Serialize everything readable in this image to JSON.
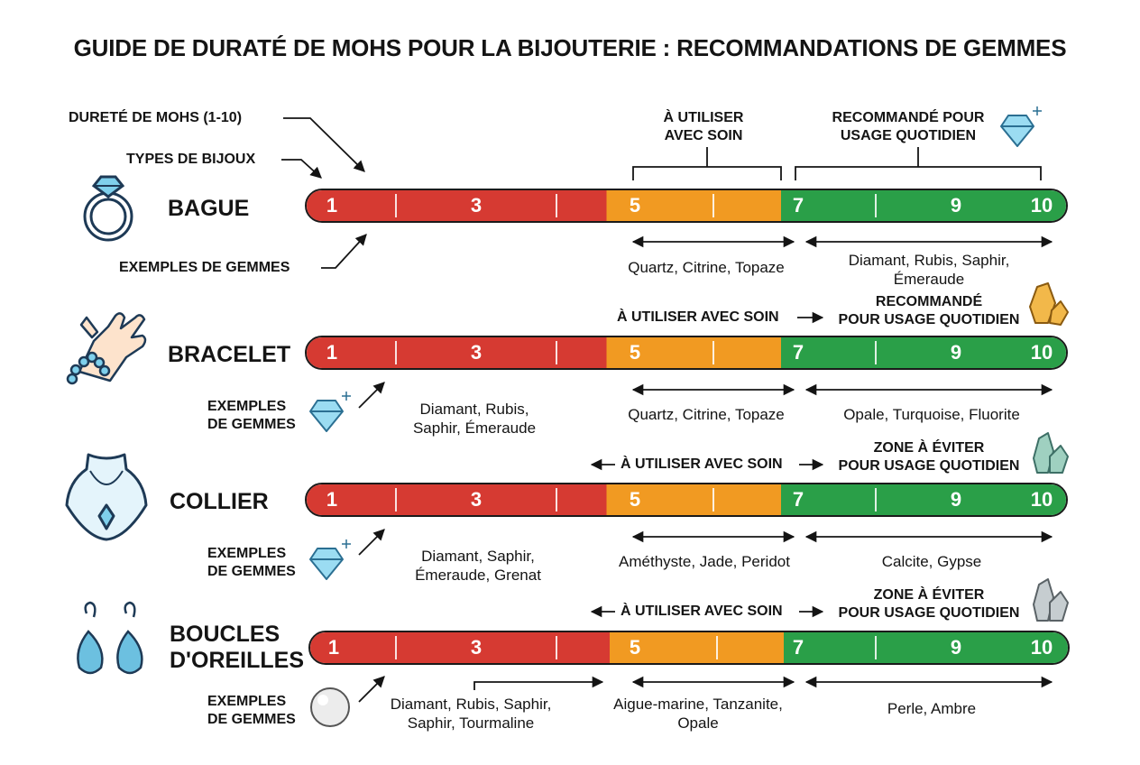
{
  "title": "GUIDE DE DURATÉ DE MOHS POUR LA BIJOUTERIE : RECOMMANDATIONS DE GEMMES",
  "legend": {
    "mohs": "DURETÉ DE MOHS (1-10)",
    "types": "TYPES DE BIJOUX",
    "examples": "EXEMPLES DE GEMMES"
  },
  "scale_numbers": [
    "1",
    "3",
    "5",
    "7",
    "9",
    "10"
  ],
  "colors": {
    "low": "#d63a32",
    "medium": "#f19a22",
    "high": "#2a9f48",
    "gem": "#7fd0ec"
  },
  "rows": [
    {
      "label": "BAGUE",
      "icon": "ring-icon",
      "care_label": "À UTILISER\nAVEC SOIN",
      "zone_label": "RECOMMANDÉ POUR\nUSAGE QUOTIDIEN",
      "gems_low": "",
      "gems_mid": "Quartz, Citrine, Topaze",
      "gems_high": "Diamant, Rubis, Saphir,\nÉmeraude"
    },
    {
      "label": "BRACELET",
      "icon": "hand-bracelet-icon",
      "care_label": "À UTILISER AVEC SOIN",
      "zone_label": "RECOMMANDÉ\nPOUR USAGE QUOTIDIEN",
      "examples_label": "EXEMPLES\nDE GEMMES",
      "gems_low": "Diamant, Rubis,\nSaphir, Émeraude",
      "gems_mid": "Quartz, Citrine, Topaze",
      "gems_high": "Opale, Turquoise, Fluorite"
    },
    {
      "label": "COLLIER",
      "icon": "necklace-icon",
      "care_label": "À UTILISER AVEC SOIN",
      "zone_label": "ZONE À ÉVITER\nPOUR USAGE QUOTIDIEN",
      "examples_label": "EXEMPLES\nDE GEMMES",
      "gems_low": "Diamant, Saphir,\nÉmeraude, Grenat",
      "gems_mid": "Améthyste, Jade, Peridot",
      "gems_high": "Calcite, Gypse"
    },
    {
      "label": "BOUCLES\nD'OREILLES",
      "icon": "earrings-icon",
      "care_label": "À UTILISER AVEC SOIN",
      "zone_label": "ZONE À ÉVITER\nPOUR USAGE QUOTIDIEN",
      "examples_label": "EXEMPLES\nDE GEMMES",
      "gems_low": "Diamant, Rubis, Saphir,\nSaphir, Tourmaline",
      "gems_mid": "Aigue-marine, Tanzanite,\nOpale",
      "gems_high": "Perle, Ambre"
    }
  ]
}
